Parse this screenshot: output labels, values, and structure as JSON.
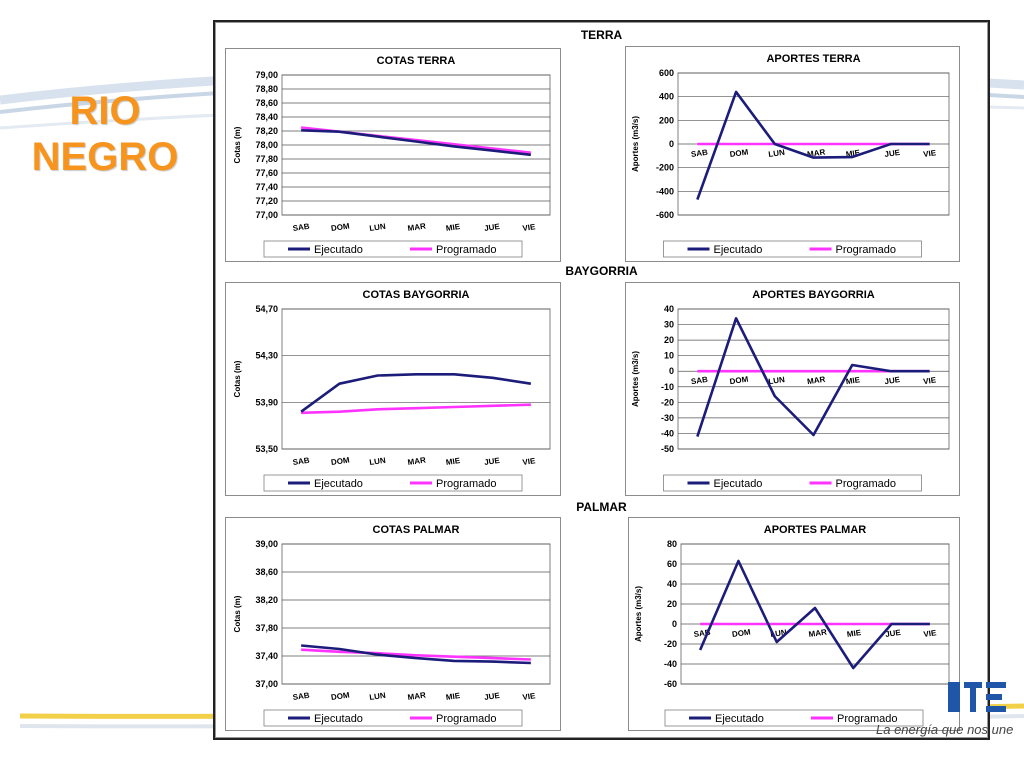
{
  "slide": {
    "title_line1": "RIO",
    "title_line2": "NEGRO"
  },
  "sections": {
    "terra": "TERRA",
    "baygorria": "BAYGORRIA",
    "palmar": "PALMAR"
  },
  "brand": {
    "tagline": "La energía que nos une",
    "accent_color": "#f7941d"
  },
  "colors": {
    "ejecutado": "#1c1c7a",
    "programado": "#ff33ff",
    "grid": "#555555"
  },
  "chart_data": [
    {
      "id": "cotas-terra",
      "type": "line",
      "title": "COTAS TERRA",
      "xlabel": "",
      "ylabel": "Cotas (m)",
      "categories": [
        "SAB",
        "DOM",
        "LUN",
        "MAR",
        "MIE",
        "JUE",
        "VIE"
      ],
      "ylim": [
        77.0,
        79.0
      ],
      "yticks": [
        "77,00",
        "77,20",
        "77,40",
        "77,60",
        "77,80",
        "78,00",
        "78,20",
        "78,40",
        "78,60",
        "78,80",
        "79,00"
      ],
      "series": [
        {
          "name": "Ejecutado",
          "values": [
            78.21,
            78.19,
            78.12,
            78.05,
            77.98,
            77.92,
            77.86
          ]
        },
        {
          "name": "Programado",
          "values": [
            78.25,
            78.19,
            78.13,
            78.07,
            78.01,
            77.95,
            77.89
          ]
        }
      ],
      "legend": "bottom"
    },
    {
      "id": "aportes-terra",
      "type": "line",
      "title": "APORTES TERRA",
      "xlabel": "",
      "ylabel": "Aportes (m3/s)",
      "categories": [
        "SAB",
        "DOM",
        "LUN",
        "MAR",
        "MIE",
        "JUE",
        "VIE"
      ],
      "ylim": [
        -600,
        600
      ],
      "yticks": [
        "-600",
        "-400",
        "-200",
        "0",
        "200",
        "400",
        "600"
      ],
      "series": [
        {
          "name": "Ejecutado",
          "values": [
            -470,
            440,
            0,
            -115,
            -110,
            0,
            0
          ]
        },
        {
          "name": "Programado",
          "values": [
            0,
            0,
            0,
            0,
            0,
            0,
            0
          ]
        }
      ],
      "legend": "bottom"
    },
    {
      "id": "cotas-baygorria",
      "type": "line",
      "title": "COTAS BAYGORRIA",
      "xlabel": "",
      "ylabel": "Cotas (m)",
      "categories": [
        "SAB",
        "DOM",
        "LUN",
        "MAR",
        "MIE",
        "JUE",
        "VIE"
      ],
      "ylim": [
        53.5,
        54.7
      ],
      "yticks": [
        "53,50",
        "53,90",
        "54,30",
        "54,70"
      ],
      "series": [
        {
          "name": "Ejecutado",
          "values": [
            53.82,
            54.06,
            54.13,
            54.14,
            54.14,
            54.11,
            54.06
          ]
        },
        {
          "name": "Programado",
          "values": [
            53.81,
            53.82,
            53.84,
            53.85,
            53.86,
            53.87,
            53.88
          ]
        }
      ],
      "legend": "bottom"
    },
    {
      "id": "aportes-baygorria",
      "type": "line",
      "title": "APORTES BAYGORRIA",
      "xlabel": "",
      "ylabel": "Aportes (m3/s)",
      "categories": [
        "SAB",
        "DOM",
        "LUN",
        "MAR",
        "MIE",
        "JUE",
        "VIE"
      ],
      "ylim": [
        -50,
        40
      ],
      "yticks": [
        "-50",
        "-40",
        "-30",
        "-20",
        "-10",
        "0",
        "10",
        "20",
        "30",
        "40"
      ],
      "series": [
        {
          "name": "Ejecutado",
          "values": [
            -42,
            34,
            -16,
            -41,
            4,
            0,
            0
          ]
        },
        {
          "name": "Programado",
          "values": [
            0,
            0,
            0,
            0,
            0,
            0,
            0
          ]
        }
      ],
      "legend": "bottom"
    },
    {
      "id": "cotas-palmar",
      "type": "line",
      "title": "COTAS PALMAR",
      "xlabel": "",
      "ylabel": "Cotas (m)",
      "categories": [
        "SAB",
        "DOM",
        "LUN",
        "MAR",
        "MIE",
        "JUE",
        "VIE"
      ],
      "ylim": [
        37.0,
        39.0
      ],
      "yticks": [
        "37,00",
        "37,40",
        "37,80",
        "38,20",
        "38,60",
        "39,00"
      ],
      "series": [
        {
          "name": "Ejecutado",
          "values": [
            37.55,
            37.5,
            37.42,
            37.37,
            37.33,
            37.32,
            37.3
          ]
        },
        {
          "name": "Programado",
          "values": [
            37.49,
            37.46,
            37.44,
            37.41,
            37.39,
            37.37,
            37.35
          ]
        }
      ],
      "legend": "bottom"
    },
    {
      "id": "aportes-palmar",
      "type": "line",
      "title": "APORTES PALMAR",
      "xlabel": "",
      "ylabel": "Aportes (m3/s)",
      "categories": [
        "SAB",
        "DOM",
        "LUN",
        "MAR",
        "MIE",
        "JUE",
        "VIE"
      ],
      "ylim": [
        -60,
        80
      ],
      "yticks": [
        "-60",
        "-40",
        "-20",
        "0",
        "20",
        "40",
        "60",
        "80"
      ],
      "series": [
        {
          "name": "Ejecutado",
          "values": [
            -26,
            63,
            -18,
            16,
            -44,
            0,
            0
          ]
        },
        {
          "name": "Programado",
          "values": [
            0,
            0,
            0,
            0,
            0,
            0,
            0
          ]
        }
      ],
      "legend": "bottom"
    }
  ]
}
